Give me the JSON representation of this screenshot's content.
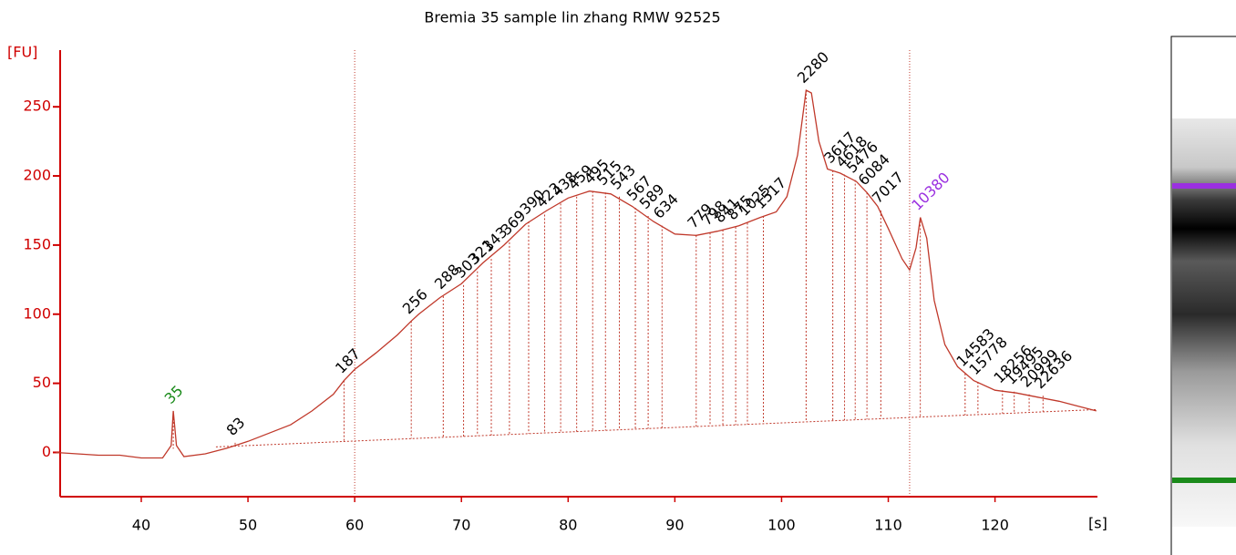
{
  "chart_data": {
    "type": "electropherogram",
    "title": "Bremia 35 sample lin zhang RMW 92525",
    "y_label": "[FU]",
    "x_label": "[s]",
    "xlim": [
      32.4,
      129.6
    ],
    "ylim": [
      -32,
      291
    ],
    "xticks": [
      40,
      50,
      60,
      70,
      80,
      90,
      100,
      110,
      120
    ],
    "yticks": [
      0,
      50,
      100,
      150,
      200,
      250
    ],
    "trace_color": "#c0392b",
    "axis_color": "#d00000",
    "markers": [
      60,
      112
    ],
    "baseline": {
      "time": [
        47,
        129.5
      ],
      "fu": [
        4,
        31
      ]
    },
    "trace_time": [
      32,
      34,
      36,
      38,
      40,
      42,
      42.8,
      43,
      43.3,
      44,
      46,
      48,
      50,
      52,
      54,
      56,
      58,
      59,
      60,
      62,
      64,
      65.3,
      66,
      68,
      70,
      72,
      74,
      76,
      78,
      80,
      82,
      84,
      86,
      88,
      90,
      92,
      94,
      96,
      98,
      99.5,
      100.5,
      101.5,
      102.3,
      102.8,
      103.5,
      104.3,
      105.5,
      107,
      108,
      109,
      110,
      111.3,
      112,
      112.6,
      113,
      113.6,
      114.3,
      115.3,
      116.5,
      118,
      120,
      122,
      124,
      126,
      128,
      129.5
    ],
    "trace_fu": [
      0,
      -1,
      -2,
      -2,
      -4,
      -4,
      5,
      30,
      5,
      -3,
      -1,
      3,
      8,
      14,
      20,
      30,
      42,
      52,
      60,
      72,
      85,
      95,
      100,
      112,
      122,
      137,
      150,
      165,
      175,
      184,
      189,
      187,
      178,
      167,
      158,
      157,
      160,
      164,
      170,
      174,
      185,
      215,
      262,
      260,
      225,
      205,
      202,
      196,
      188,
      178,
      162,
      140,
      132,
      148,
      170,
      155,
      110,
      78,
      62,
      52,
      45,
      43,
      40,
      37,
      33,
      30
    ],
    "peaks": [
      {
        "time": 43,
        "fu": 30,
        "size": 35,
        "color": "#1a8a1a"
      },
      {
        "time": 48.8,
        "fu": 7,
        "size": 83
      },
      {
        "time": 59,
        "fu": 52,
        "size": 187
      },
      {
        "time": 65.3,
        "fu": 95,
        "size": 256
      },
      {
        "time": 68.3,
        "fu": 113,
        "size": 288
      },
      {
        "time": 70.2,
        "fu": 121,
        "size": 303
      },
      {
        "time": 71.5,
        "fu": 131,
        "size": 321
      },
      {
        "time": 72.8,
        "fu": 140,
        "size": 343
      },
      {
        "time": 74.5,
        "fu": 152,
        "size": 369
      },
      {
        "time": 76.3,
        "fu": 167,
        "size": 390
      },
      {
        "time": 77.8,
        "fu": 172,
        "size": 423
      },
      {
        "time": 79.3,
        "fu": 180,
        "size": 438
      },
      {
        "time": 80.8,
        "fu": 185,
        "size": 459
      },
      {
        "time": 82.3,
        "fu": 189,
        "size": 495
      },
      {
        "time": 83.5,
        "fu": 188,
        "size": 515
      },
      {
        "time": 84.8,
        "fu": 185,
        "size": 543
      },
      {
        "time": 86.3,
        "fu": 177,
        "size": 567
      },
      {
        "time": 87.5,
        "fu": 171,
        "size": 589
      },
      {
        "time": 88.8,
        "fu": 164,
        "size": 634
      },
      {
        "time": 92,
        "fu": 157,
        "size": 779
      },
      {
        "time": 93.3,
        "fu": 159,
        "size": 798
      },
      {
        "time": 94.5,
        "fu": 161,
        "size": 841
      },
      {
        "time": 95.7,
        "fu": 163,
        "size": 875
      },
      {
        "time": 96.8,
        "fu": 166,
        "size": 1025
      },
      {
        "time": 98.3,
        "fu": 171,
        "size": 1517
      },
      {
        "time": 102.3,
        "fu": 262,
        "size": 2280
      },
      {
        "time": 104.8,
        "fu": 204,
        "size": 3617
      },
      {
        "time": 105.9,
        "fu": 201,
        "size": 4618
      },
      {
        "time": 106.9,
        "fu": 197,
        "size": 5476
      },
      {
        "time": 108,
        "fu": 188,
        "size": 6084
      },
      {
        "time": 109.3,
        "fu": 175,
        "size": 7017
      },
      {
        "time": 113,
        "fu": 170,
        "size": 10380,
        "color": "#9b30e0"
      },
      {
        "time": 117.2,
        "fu": 57,
        "size": 14583
      },
      {
        "time": 118.4,
        "fu": 51,
        "size": 15778
      },
      {
        "time": 120.7,
        "fu": 45,
        "size": 18256
      },
      {
        "time": 121.8,
        "fu": 44,
        "size": 19495
      },
      {
        "time": 123.2,
        "fu": 42,
        "size": 20999
      },
      {
        "time": 124.5,
        "fu": 41,
        "size": 22636
      }
    ]
  }
}
